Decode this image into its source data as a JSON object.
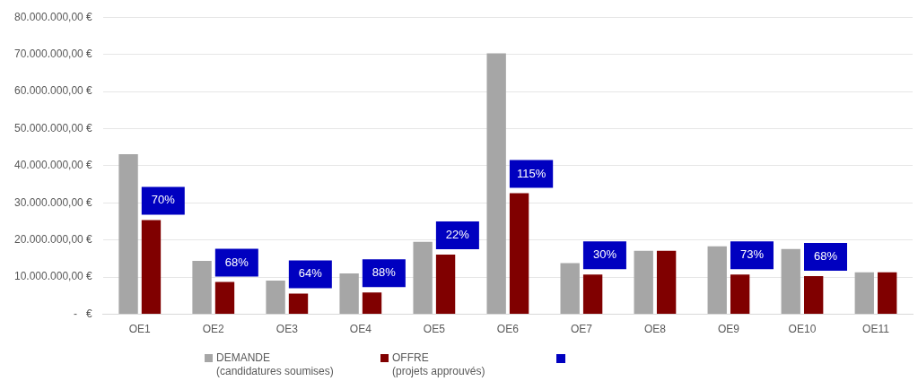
{
  "chart_data": {
    "type": "bar",
    "categories": [
      "OE1",
      "OE2",
      "OE3",
      "OE4",
      "OE5",
      "OE6",
      "OE7",
      "OE8",
      "OE9",
      "OE10",
      "OE11"
    ],
    "series": [
      {
        "name": "DEMANDE\n(candidatures soumises)",
        "color": "#a6a6a6",
        "values": [
          43100000,
          14400000,
          9100000,
          11000000,
          19500000,
          70300000,
          13800000,
          17100000,
          18300000,
          17600000,
          11300000
        ]
      },
      {
        "name": "OFFRE\n(projets approuvés)",
        "color": "#800000",
        "values": [
          25400000,
          8700000,
          5600000,
          5900000,
          16100000,
          32600000,
          10700000,
          17100000,
          10700000,
          10300000,
          11300000
        ]
      }
    ],
    "ylim": [
      0,
      80000000
    ],
    "yticks": [
      {
        "value": 0,
        "label": "-   €"
      },
      {
        "value": 10000000,
        "label": "10.000.000,00 €"
      },
      {
        "value": 20000000,
        "label": "20.000.000,00 €"
      },
      {
        "value": 30000000,
        "label": "30.000.000,00 €"
      },
      {
        "value": 40000000,
        "label": "40.000.000,00 €"
      },
      {
        "value": 50000000,
        "label": "50.000.000,00 €"
      },
      {
        "value": 60000000,
        "label": "60.000.000,00 €"
      },
      {
        "value": 70000000,
        "label": "70.000.000,00 €"
      },
      {
        "value": 80000000,
        "label": "80.000.000,00 €"
      }
    ],
    "annotations": [
      {
        "text": "70%",
        "x": "OE1",
        "y": 25400000
      },
      {
        "text": "68%",
        "x": "OE2",
        "y": 8700000
      },
      {
        "text": "64%",
        "x": "OE3",
        "y": 5600000
      },
      {
        "text": "88%",
        "x": "OE4",
        "y": 5900000
      },
      {
        "text": "22%",
        "x": "OE5",
        "y": 16100000
      },
      {
        "text": "115%",
        "x": "OE6",
        "y": 32600000
      },
      {
        "text": "30%",
        "x": "OE7",
        "y": 10700000
      },
      {
        "text": "73%",
        "x": "OE9",
        "y": 10700000
      },
      {
        "text": "68%",
        "x": "OE10",
        "y": 10300000
      }
    ],
    "grid": "y",
    "legend": "bottom"
  }
}
